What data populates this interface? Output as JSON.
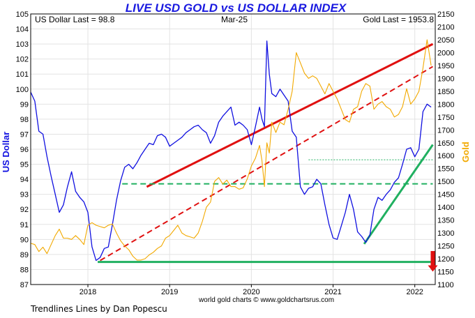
{
  "chart_data": {
    "type": "line",
    "title": "LIVE USD GOLD vs US DOLLAR INDEX",
    "subtitle": "Mar-25",
    "ylabel_left": "US Dollar",
    "ylabel_right": "Gold",
    "last_left": "US Dollar Last = 98.8",
    "last_right": "Gold Last = 1953.8",
    "source": "world gold charts © www.goldchartsrus.com",
    "xlim": [
      2017.3,
      2022.25
    ],
    "ylim_left": [
      87,
      105
    ],
    "ylim_right": [
      1100,
      2150
    ],
    "x_ticks": [
      2018,
      2019,
      2020,
      2021,
      2022
    ],
    "y_ticks_left": [
      87,
      88,
      89,
      90,
      91,
      92,
      93,
      94,
      95,
      96,
      97,
      98,
      99,
      100,
      101,
      102,
      103,
      104,
      105
    ],
    "y_ticks_right": [
      1100,
      1150,
      1200,
      1250,
      1300,
      1350,
      1400,
      1450,
      1500,
      1550,
      1600,
      1650,
      1700,
      1750,
      1800,
      1850,
      1900,
      1950,
      2000,
      2050,
      2100,
      2150
    ],
    "grid": true,
    "colors": {
      "usd": "#1010e0",
      "gold": "#f2a900",
      "red": "#e01010",
      "green": "#20b060",
      "title": "#1a1ae0"
    },
    "series": [
      {
        "name": "US Dollar",
        "axis": "left",
        "x": [
          2017.3,
          2017.35,
          2017.4,
          2017.45,
          2017.5,
          2017.55,
          2017.6,
          2017.65,
          2017.7,
          2017.75,
          2017.8,
          2017.85,
          2017.9,
          2017.95,
          2018.0,
          2018.05,
          2018.1,
          2018.15,
          2018.2,
          2018.25,
          2018.3,
          2018.35,
          2018.4,
          2018.45,
          2018.5,
          2018.55,
          2018.6,
          2018.65,
          2018.7,
          2018.75,
          2018.8,
          2018.85,
          2018.9,
          2018.95,
          2019.0,
          2019.05,
          2019.1,
          2019.15,
          2019.2,
          2019.25,
          2019.3,
          2019.35,
          2019.4,
          2019.45,
          2019.5,
          2019.55,
          2019.6,
          2019.65,
          2019.7,
          2019.75,
          2019.8,
          2019.85,
          2019.9,
          2019.95,
          2020.0,
          2020.05,
          2020.1,
          2020.13,
          2020.16,
          2020.19,
          2020.22,
          2020.25,
          2020.3,
          2020.35,
          2020.4,
          2020.45,
          2020.5,
          2020.55,
          2020.6,
          2020.65,
          2020.7,
          2020.75,
          2020.8,
          2020.85,
          2020.9,
          2020.95,
          2021.0,
          2021.05,
          2021.1,
          2021.15,
          2021.2,
          2021.25,
          2021.3,
          2021.35,
          2021.4,
          2021.45,
          2021.5,
          2021.55,
          2021.6,
          2021.65,
          2021.7,
          2021.75,
          2021.8,
          2021.85,
          2021.9,
          2021.95,
          2022.0,
          2022.05,
          2022.1,
          2022.15,
          2022.2
        ],
        "values": [
          99.8,
          99.2,
          97.2,
          97.0,
          95.5,
          94.2,
          93.0,
          91.8,
          92.3,
          93.5,
          94.5,
          93.2,
          92.8,
          92.5,
          91.8,
          89.5,
          88.6,
          88.8,
          89.4,
          89.5,
          91.0,
          92.6,
          93.9,
          94.8,
          95.0,
          94.7,
          95.1,
          95.6,
          96.0,
          96.4,
          96.3,
          96.9,
          97.0,
          96.8,
          96.2,
          96.4,
          96.6,
          96.8,
          97.1,
          97.3,
          97.5,
          97.6,
          97.3,
          97.1,
          96.4,
          96.9,
          97.8,
          98.2,
          98.5,
          98.8,
          97.6,
          97.8,
          97.6,
          97.3,
          96.3,
          97.5,
          98.8,
          98.0,
          97.5,
          103.2,
          101.0,
          99.7,
          99.5,
          100.0,
          99.6,
          99.2,
          97.2,
          96.8,
          93.5,
          93.0,
          93.4,
          93.5,
          94.0,
          93.7,
          92.3,
          91.0,
          90.1,
          90.0,
          90.9,
          91.8,
          93.0,
          92.0,
          90.5,
          90.2,
          89.8,
          90.3,
          92.0,
          92.8,
          92.6,
          93.0,
          93.3,
          93.8,
          94.1,
          95.0,
          96.0,
          96.1,
          95.5,
          96.0,
          98.5,
          99.0,
          98.8
        ]
      },
      {
        "name": "Gold",
        "axis": "right",
        "x": [
          2017.3,
          2017.35,
          2017.4,
          2017.45,
          2017.5,
          2017.55,
          2017.6,
          2017.65,
          2017.7,
          2017.75,
          2017.8,
          2017.85,
          2017.9,
          2017.95,
          2018.0,
          2018.05,
          2018.1,
          2018.15,
          2018.2,
          2018.25,
          2018.3,
          2018.35,
          2018.4,
          2018.45,
          2018.5,
          2018.55,
          2018.6,
          2018.65,
          2018.7,
          2018.75,
          2018.8,
          2018.85,
          2018.9,
          2018.95,
          2019.0,
          2019.05,
          2019.1,
          2019.15,
          2019.2,
          2019.25,
          2019.3,
          2019.35,
          2019.4,
          2019.45,
          2019.5,
          2019.55,
          2019.6,
          2019.65,
          2019.7,
          2019.75,
          2019.8,
          2019.85,
          2019.9,
          2019.95,
          2020.0,
          2020.05,
          2020.1,
          2020.13,
          2020.16,
          2020.19,
          2020.22,
          2020.25,
          2020.3,
          2020.35,
          2020.4,
          2020.45,
          2020.5,
          2020.55,
          2020.6,
          2020.65,
          2020.7,
          2020.75,
          2020.8,
          2020.85,
          2020.9,
          2020.95,
          2021.0,
          2021.05,
          2021.1,
          2021.15,
          2021.2,
          2021.25,
          2021.3,
          2021.35,
          2021.4,
          2021.45,
          2021.5,
          2021.55,
          2021.6,
          2021.65,
          2021.7,
          2021.75,
          2021.8,
          2021.85,
          2021.9,
          2021.95,
          2022.0,
          2022.05,
          2022.1,
          2022.15,
          2022.2
        ],
        "values": [
          1260,
          1255,
          1228,
          1245,
          1220,
          1255,
          1290,
          1315,
          1280,
          1280,
          1275,
          1290,
          1275,
          1255,
          1330,
          1340,
          1330,
          1325,
          1320,
          1330,
          1335,
          1300,
          1270,
          1250,
          1235,
          1210,
          1195,
          1195,
          1200,
          1215,
          1225,
          1240,
          1250,
          1280,
          1290,
          1310,
          1330,
          1300,
          1290,
          1285,
          1280,
          1300,
          1345,
          1400,
          1420,
          1500,
          1515,
          1490,
          1505,
          1480,
          1480,
          1470,
          1475,
          1510,
          1560,
          1590,
          1640,
          1580,
          1480,
          1650,
          1610,
          1730,
          1690,
          1730,
          1720,
          1780,
          1850,
          2000,
          1960,
          1920,
          1900,
          1910,
          1900,
          1870,
          1840,
          1880,
          1850,
          1820,
          1780,
          1740,
          1730,
          1780,
          1790,
          1850,
          1880,
          1870,
          1780,
          1800,
          1810,
          1790,
          1780,
          1750,
          1760,
          1790,
          1860,
          1800,
          1820,
          1850,
          1940,
          2050,
          1950
        ]
      }
    ],
    "trendlines": [
      {
        "name": "usd-resistance-red",
        "axis": "left",
        "style": "solid",
        "color": "#e01010",
        "points": [
          [
            2018.72,
            93.5
          ],
          [
            2022.22,
            103.0
          ]
        ]
      },
      {
        "name": "usd-support-red-dashed",
        "axis": "left",
        "style": "dashed",
        "color": "#e01010",
        "points": [
          [
            2018.15,
            88.6
          ],
          [
            2022.22,
            101.5
          ]
        ]
      },
      {
        "name": "usd-green-dashed-1",
        "axis": "left",
        "style": "dashed",
        "color": "#20b060",
        "points": [
          [
            2018.42,
            93.7
          ],
          [
            2022.22,
            93.7
          ]
        ]
      },
      {
        "name": "usd-green-dotted",
        "axis": "left",
        "style": "dotted",
        "color": "#20b060",
        "points": [
          [
            2020.7,
            95.3
          ],
          [
            2022.22,
            95.3
          ]
        ]
      },
      {
        "name": "usd-floor-green",
        "axis": "left",
        "style": "solid",
        "color": "#20b060",
        "points": [
          [
            2018.12,
            88.5
          ],
          [
            2022.22,
            88.5
          ]
        ]
      },
      {
        "name": "usd-rising-green",
        "axis": "left",
        "style": "solid",
        "color": "#20b060",
        "points": [
          [
            2021.38,
            89.7
          ],
          [
            2022.22,
            96.3
          ]
        ]
      }
    ],
    "annotation_arrow": {
      "x": 2022.22,
      "axis": "right",
      "from": 1230,
      "to": 1150,
      "color": "#e01010"
    }
  },
  "footer": {
    "credit": "Trendlines Lines by Dan Popescu"
  }
}
